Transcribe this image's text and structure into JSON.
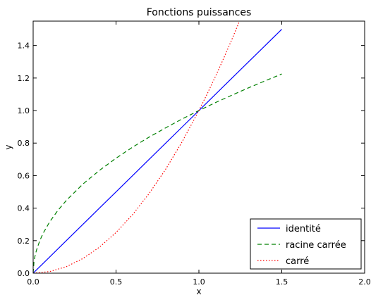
{
  "chart_data": {
    "type": "line",
    "title": "Fonctions puissances",
    "xlabel": "x",
    "ylabel": "y",
    "xlim": [
      0,
      2
    ],
    "ylim": [
      0,
      1.55
    ],
    "xticks": [
      "0.0",
      "0.5",
      "1.0",
      "1.5",
      "2.0"
    ],
    "yticks": [
      "0.0",
      "0.2",
      "0.4",
      "0.6",
      "0.8",
      "1.0",
      "1.2",
      "1.4"
    ],
    "legend": "lower-right",
    "grid": false,
    "series": [
      {
        "name": "identité",
        "color": "#0000ff",
        "style": "solid",
        "x": [
          0,
          0.1,
          0.2,
          0.3,
          0.4,
          0.5,
          0.6,
          0.7,
          0.8,
          0.9,
          1.0,
          1.1,
          1.2,
          1.3,
          1.4,
          1.5
        ],
        "y": [
          0,
          0.1,
          0.2,
          0.3,
          0.4,
          0.5,
          0.6,
          0.7,
          0.8,
          0.9,
          1.0,
          1.1,
          1.2,
          1.3,
          1.4,
          1.5
        ]
      },
      {
        "name": "racine carrée",
        "color": "#008000",
        "style": "dashed",
        "x": [
          0,
          0.005,
          0.01,
          0.02,
          0.04,
          0.06,
          0.1,
          0.15,
          0.2,
          0.3,
          0.4,
          0.5,
          0.6,
          0.7,
          0.8,
          0.9,
          1.0,
          1.1,
          1.2,
          1.3,
          1.4,
          1.5
        ],
        "y": [
          0,
          0.071,
          0.1,
          0.141,
          0.2,
          0.245,
          0.316,
          0.387,
          0.447,
          0.548,
          0.632,
          0.707,
          0.775,
          0.837,
          0.894,
          0.949,
          1.0,
          1.049,
          1.095,
          1.14,
          1.183,
          1.225
        ]
      },
      {
        "name": "carré",
        "color": "#ff0000",
        "style": "dotted",
        "x": [
          0,
          0.1,
          0.2,
          0.3,
          0.4,
          0.5,
          0.6,
          0.7,
          0.8,
          0.9,
          1.0,
          1.05,
          1.1,
          1.15,
          1.2,
          1.245
        ],
        "y": [
          0,
          0.01,
          0.04,
          0.09,
          0.16,
          0.25,
          0.36,
          0.49,
          0.64,
          0.81,
          1.0,
          1.1025,
          1.21,
          1.3225,
          1.44,
          1.55
        ]
      }
    ]
  }
}
